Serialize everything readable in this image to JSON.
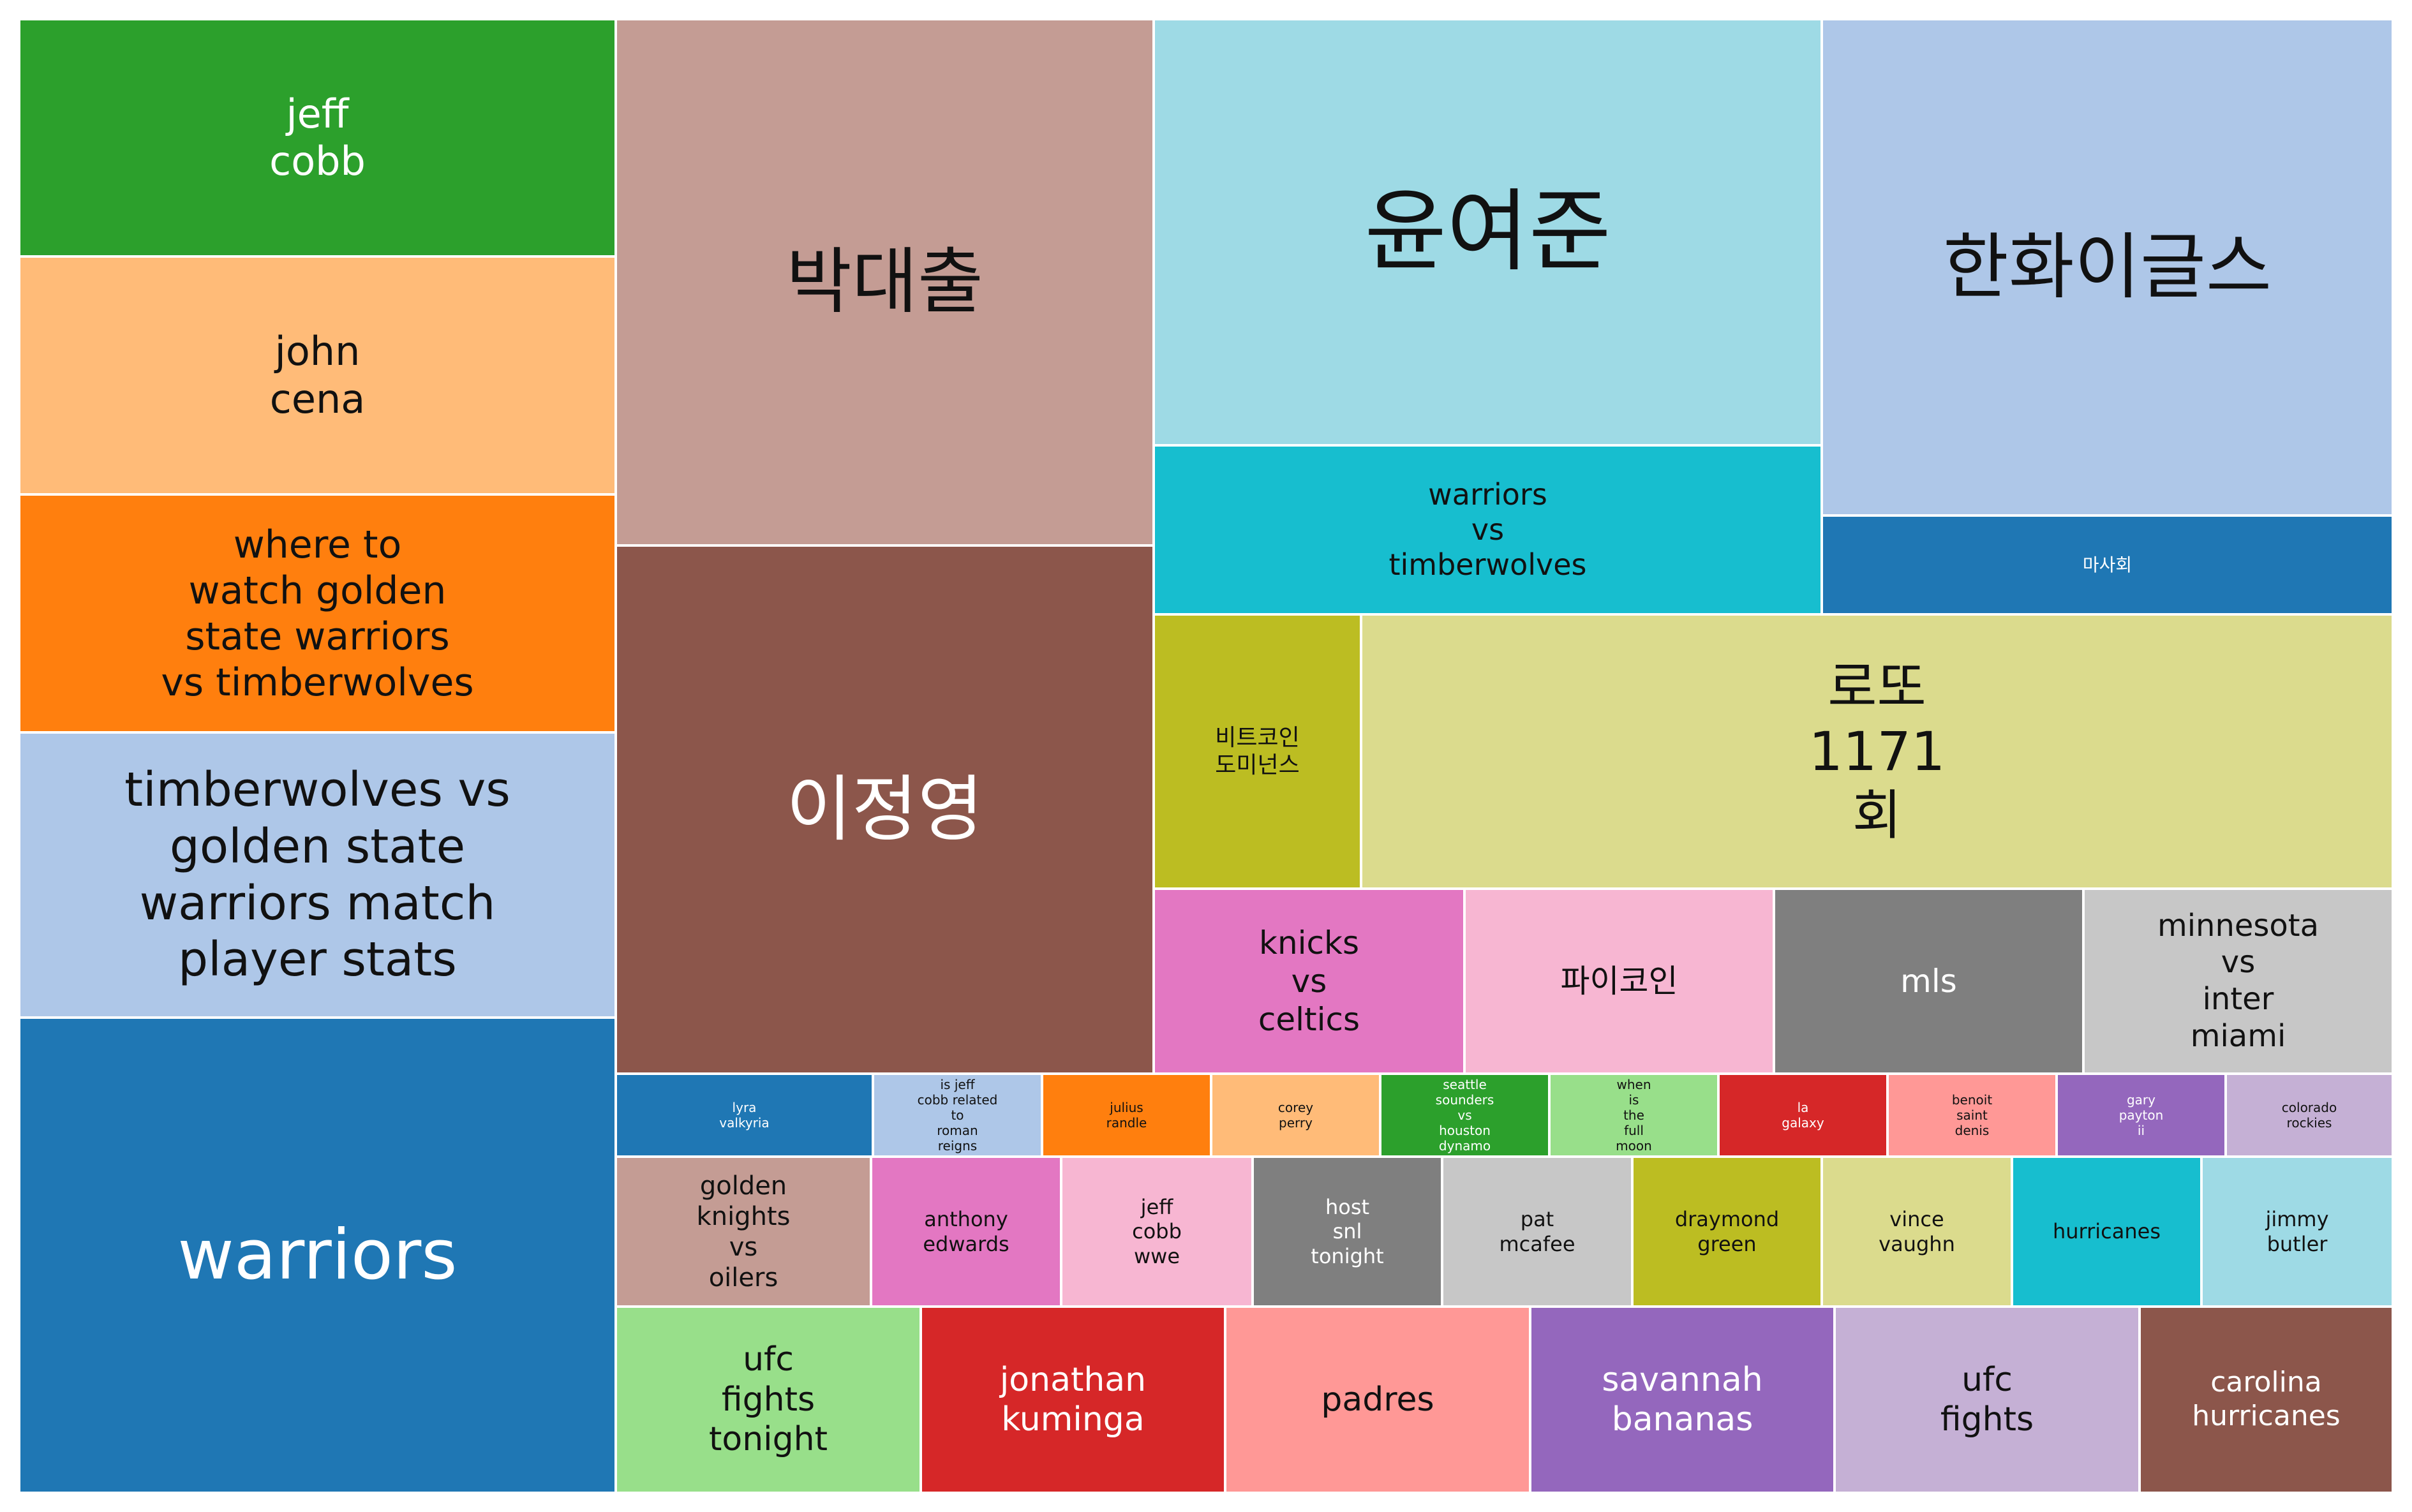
{
  "chart_data": {
    "type": "treemap",
    "title": "",
    "items": [
      {
        "label": "jeff\ncobb",
        "color": "#2ca02c"
      },
      {
        "label": "john\ncena",
        "color": "#ffbb78"
      },
      {
        "label": "where to\nwatch golden\nstate warriors\nvs timberwolves",
        "color": "#ff7f0e"
      },
      {
        "label": "timberwolves vs\ngolden state\nwarriors match\nplayer stats",
        "color": "#aec7e8"
      },
      {
        "label": "warriors",
        "color": "#1f77b4"
      },
      {
        "label": "박대출",
        "color": "#c49c94"
      },
      {
        "label": "이정영",
        "color": "#8c564b"
      },
      {
        "label": "윤여준",
        "color": "#9edae5"
      },
      {
        "label": "warriors\nvs\ntimberwolves",
        "color": "#17becf"
      },
      {
        "label": "한화이글스",
        "color": "#aec7e8"
      },
      {
        "label": "마사회",
        "color": "#1f77b4"
      },
      {
        "label": "비트코인\n도미넌스",
        "color": "#bcbd22"
      },
      {
        "label": "로또\n1171\n회",
        "color": "#dbdb8d"
      },
      {
        "label": "knicks\nvs\nceltics",
        "color": "#e377c2"
      },
      {
        "label": "파이코인",
        "color": "#f7b6d2"
      },
      {
        "label": "mls",
        "color": "#7f7f7f"
      },
      {
        "label": "minnesota\nvs\ninter\nmiami",
        "color": "#c7c7c7"
      },
      {
        "label": "lyra\nvalkyria",
        "color": "#1f77b4"
      },
      {
        "label": "is jeff\ncobb related\nto\nroman\nreigns",
        "color": "#aec7e8"
      },
      {
        "label": "julius\nrandle",
        "color": "#ff7f0e"
      },
      {
        "label": "corey\nperry",
        "color": "#ffbb78"
      },
      {
        "label": "seattle\nsounders\nvs\nhouston\ndynamo",
        "color": "#2ca02c"
      },
      {
        "label": "when\nis\nthe\nfull\nmoon",
        "color": "#98df8a"
      },
      {
        "label": "la\ngalaxy",
        "color": "#d62728"
      },
      {
        "label": "benoit\nsaint\ndenis",
        "color": "#ff9896"
      },
      {
        "label": "gary\npayton\nii",
        "color": "#9467bd"
      },
      {
        "label": "colorado\nrockies",
        "color": "#c5b0d5"
      },
      {
        "label": "golden\nknights\nvs\noilers",
        "color": "#c49c94"
      },
      {
        "label": "anthony\nedwards",
        "color": "#e377c2"
      },
      {
        "label": "jeff\ncobb\nwwe",
        "color": "#f7b6d2"
      },
      {
        "label": "host\nsnl\ntonight",
        "color": "#7f7f7f"
      },
      {
        "label": "pat\nmcafee",
        "color": "#c7c7c7"
      },
      {
        "label": "draymond\ngreen",
        "color": "#bcbd22"
      },
      {
        "label": "vince\nvaughn",
        "color": "#dbdb8d"
      },
      {
        "label": "hurricanes",
        "color": "#17becf"
      },
      {
        "label": "jimmy\nbutler",
        "color": "#9edae5"
      },
      {
        "label": "ufc\nfights\ntonight",
        "color": "#98df8a"
      },
      {
        "label": "jonathan\nkuminga",
        "color": "#d62728"
      },
      {
        "label": "padres",
        "color": "#ff9896"
      },
      {
        "label": "savannah\nbananas",
        "color": "#9467bd"
      },
      {
        "label": "ufc\nfights",
        "color": "#c5b0d5"
      },
      {
        "label": "carolina\nhurricanes",
        "color": "#8c564b"
      }
    ]
  }
}
